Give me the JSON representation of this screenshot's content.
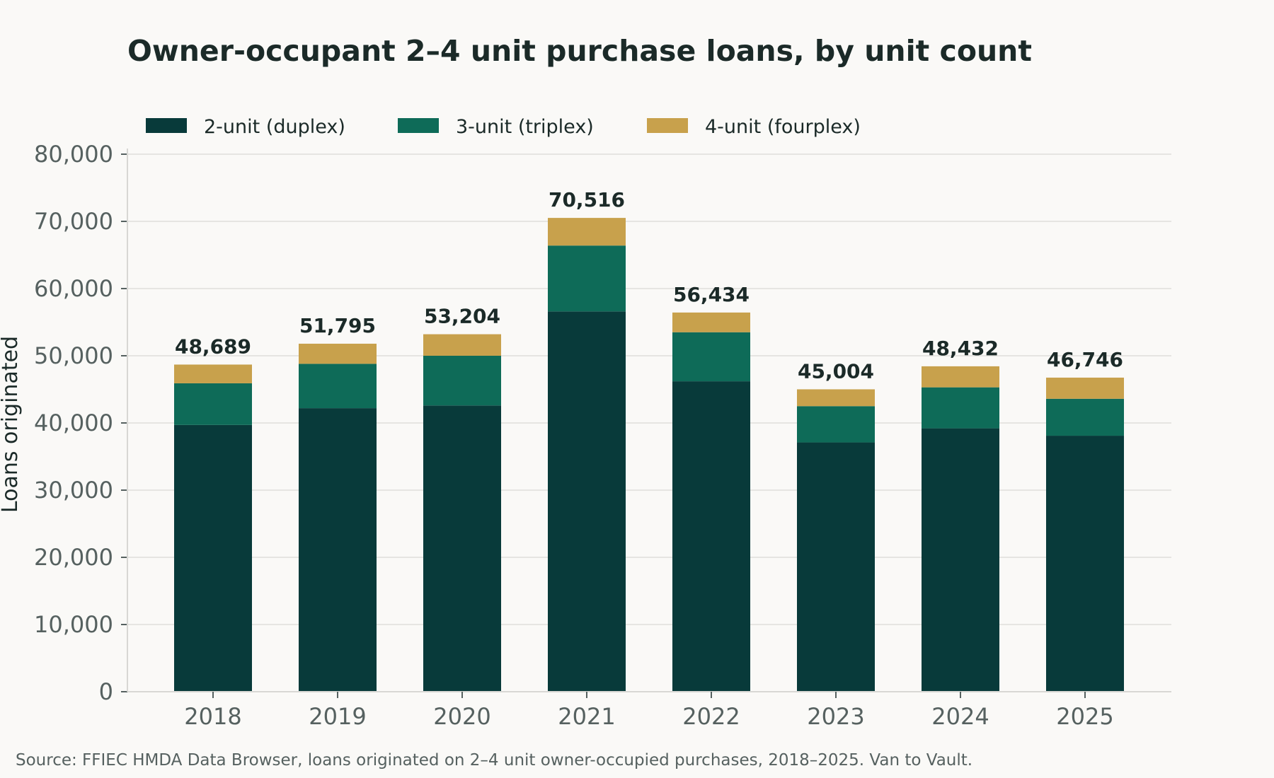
{
  "chart_data": {
    "type": "bar",
    "stacked": true,
    "title": "Owner-occupant 2–4 unit purchase loans, by unit count",
    "ylabel": "Loans originated",
    "xlabel": "",
    "ylim": [
      0,
      80000
    ],
    "yticks": [
      0,
      10000,
      20000,
      30000,
      40000,
      50000,
      60000,
      70000,
      80000
    ],
    "ytick_labels": [
      "0",
      "10,000",
      "20,000",
      "30,000",
      "40,000",
      "50,000",
      "60,000",
      "70,000",
      "80,000"
    ],
    "grid": "horizontal",
    "legend_position": "top-left",
    "categories": [
      "2018",
      "2019",
      "2020",
      "2021",
      "2022",
      "2023",
      "2024",
      "2025"
    ],
    "series": [
      {
        "name": "2-unit (duplex)",
        "color": "#083a3a",
        "values": [
          39700,
          42200,
          42600,
          56600,
          46200,
          37100,
          39200,
          38100
        ]
      },
      {
        "name": "3-unit (triplex)",
        "color": "#0e6b58",
        "values": [
          6200,
          6600,
          7400,
          9800,
          7300,
          5400,
          6100,
          5500
        ]
      },
      {
        "name": "4-unit (fourplex)",
        "color": "#c8a14c",
        "values": [
          2789,
          2995,
          3204,
          4116,
          2934,
          2504,
          3132,
          3146
        ]
      }
    ],
    "totals": [
      48689,
      51795,
      53204,
      70516,
      56434,
      45004,
      48432,
      46746
    ],
    "total_labels": [
      "48,689",
      "51,795",
      "53,204",
      "70,516",
      "56,434",
      "45,004",
      "48,432",
      "46,746"
    ]
  },
  "source": "Source: FFIEC HMDA Data Browser, loans originated on 2–4 unit owner-occupied purchases, 2018–2025. Van to Vault."
}
